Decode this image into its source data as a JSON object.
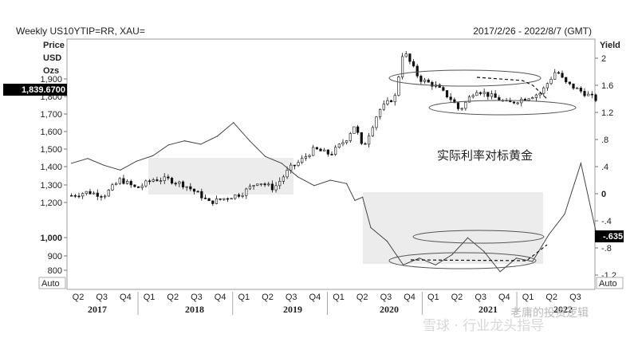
{
  "header": {
    "title": "Weekly US10YTIP=RR, XAU=",
    "date_range": "2017/2/26 - 2022/8/7 (GMT)"
  },
  "left_axis": {
    "title_lines": [
      "Price",
      "USD",
      "Ozs"
    ],
    "auto_label": "Auto",
    "current_value_label": "1,839.6700"
  },
  "right_axis": {
    "title": "Yield",
    "auto_label": "Auto",
    "current_value_label": "-.635"
  },
  "annotation": "实际利率对标黄金",
  "watermark_text": "雪球 · 行业龙头指导",
  "overlay_text": "老庸的投资逻辑",
  "colors": {
    "background": "#ffffff",
    "gold_candles": "#111111",
    "yield_line": "#444444",
    "shade": "#e7e7e7",
    "grid": "#dcdcdc",
    "value_box": "#000000"
  },
  "chart_data": {
    "type": "line",
    "title": "Weekly US10YTIP=RR, XAU=",
    "x_range": [
      "2017-02-26",
      "2022-08-07"
    ],
    "quarter_ticks": [
      "Q2",
      "Q3",
      "Q4",
      "Q1",
      "Q2",
      "Q3",
      "Q4",
      "Q1",
      "Q2",
      "Q3",
      "Q4",
      "Q1",
      "Q2",
      "Q3",
      "Q4",
      "Q1",
      "Q2",
      "Q3",
      "Q4",
      "Q1",
      "Q2",
      "Q3"
    ],
    "year_labels": [
      "2017",
      "2018",
      "2019",
      "2020",
      "2021",
      "2022"
    ],
    "left_axis": {
      "label_lines": [
        "Price",
        "USD",
        "Ozs"
      ],
      "ylim": [
        700,
        2200
      ],
      "ticks": [
        "800",
        "900",
        "1,000",
        "1,200",
        "1,300",
        "1,400",
        "1,500",
        "1,600",
        "1,700",
        "1,800",
        "1,900"
      ],
      "tick_values": [
        800,
        900,
        1000,
        1200,
        1300,
        1400,
        1500,
        1600,
        1700,
        1800,
        1900
      ],
      "bold_ticks": [
        "1,000"
      ]
    },
    "right_axis": {
      "label": "Yield",
      "ylim": [
        -1.35,
        2.3
      ],
      "ticks": [
        "2",
        "1.6",
        "1.2",
        ".8",
        ".4",
        "0",
        "-.4",
        "-.8",
        "-1.2"
      ],
      "tick_values": [
        2,
        1.6,
        1.2,
        0.8,
        0.4,
        0,
        -0.4,
        -0.8,
        -1.2
      ],
      "bold_ticks": [
        "0"
      ]
    },
    "series": [
      {
        "kind": "candlestick",
        "axis": "left",
        "x": [
          "2017-03",
          "2017-05",
          "2017-07",
          "2017-09",
          "2017-11",
          "2018-01",
          "2018-03",
          "2018-05",
          "2018-07",
          "2018-08",
          "2018-10",
          "2018-12",
          "2019-02",
          "2019-04",
          "2019-06",
          "2019-07",
          "2019-09",
          "2019-11",
          "2020-01",
          "2020-02",
          "2020-03",
          "2020-05",
          "2020-07",
          "2020-08",
          "2020-10",
          "2020-12",
          "2021-02",
          "2021-03",
          "2021-05",
          "2021-07",
          "2021-09",
          "2021-11",
          "2022-01",
          "2022-03",
          "2022-04",
          "2022-06",
          "2022-08"
        ],
        "y": [
          1240,
          1260,
          1240,
          1330,
          1280,
          1330,
          1330,
          1300,
          1240,
          1200,
          1225,
          1250,
          1320,
          1280,
          1390,
          1420,
          1500,
          1470,
          1560,
          1640,
          1500,
          1720,
          1800,
          2060,
          1900,
          1860,
          1780,
          1720,
          1840,
          1800,
          1760,
          1790,
          1820,
          1950,
          1880,
          1830,
          1780
        ]
      },
      {
        "kind": "line",
        "axis": "right",
        "x": [
          "2017-03",
          "2017-05",
          "2017-07",
          "2017-09",
          "2017-11",
          "2018-01",
          "2018-03",
          "2018-05",
          "2018-07",
          "2018-09",
          "2018-11",
          "2019-01",
          "2019-03",
          "2019-05",
          "2019-07",
          "2019-09",
          "2019-11",
          "2020-01",
          "2020-02",
          "2020-03",
          "2020-04",
          "2020-06",
          "2020-08",
          "2020-10",
          "2020-12",
          "2021-02",
          "2021-04",
          "2021-06",
          "2021-08",
          "2021-10",
          "2021-12",
          "2022-02",
          "2022-04",
          "2022-06",
          "2022-08"
        ],
        "y": [
          0.45,
          0.52,
          0.42,
          0.35,
          0.48,
          0.56,
          0.72,
          0.78,
          0.73,
          0.85,
          1.05,
          0.78,
          0.55,
          0.45,
          0.25,
          0.12,
          0.2,
          0.15,
          -0.1,
          -0.05,
          -0.5,
          -0.7,
          -1.05,
          -0.95,
          -1.05,
          -0.9,
          -0.65,
          -0.85,
          -1.15,
          -0.95,
          -1.0,
          -0.6,
          -0.3,
          0.45,
          -0.635
        ]
      }
    ],
    "annotations": [
      "实际利率对标黄金"
    ],
    "grid": false,
    "legend": "none"
  }
}
